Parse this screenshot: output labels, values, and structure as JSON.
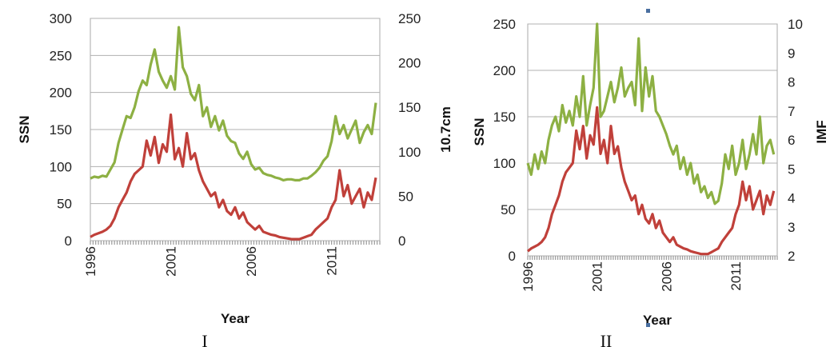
{
  "panels": [
    {
      "caption": "I",
      "chart_data": {
        "type": "line",
        "xlabel": "Year",
        "ylabel": "SSN",
        "y2label": "10.7cm",
        "xlim": [
          1996,
          2014
        ],
        "ylim": [
          0,
          300
        ],
        "y2lim": [
          0,
          250
        ],
        "xticks": [
          1996,
          2001,
          2006,
          2011
        ],
        "yticks": [
          0,
          50,
          100,
          150,
          200,
          250,
          300
        ],
        "y2ticks": [
          0,
          50,
          100,
          150,
          200,
          250
        ],
        "grid": true,
        "series": [
          {
            "axis": "right",
            "color": "#8db043",
            "x": [
              1996.0,
              1996.25,
              1996.5,
              1996.75,
              1997.0,
              1997.25,
              1997.5,
              1997.75,
              1998.0,
              1998.25,
              1998.5,
              1998.75,
              1999.0,
              1999.25,
              1999.5,
              1999.75,
              2000.0,
              2000.25,
              2000.5,
              2000.75,
              2001.0,
              2001.25,
              2001.5,
              2001.75,
              2002.0,
              2002.25,
              2002.5,
              2002.75,
              2003.0,
              2003.25,
              2003.5,
              2003.75,
              2004.0,
              2004.25,
              2004.5,
              2004.75,
              2005.0,
              2005.25,
              2005.5,
              2005.75,
              2006.0,
              2006.25,
              2006.5,
              2006.75,
              2007.0,
              2007.25,
              2007.5,
              2007.75,
              2008.0,
              2008.25,
              2008.5,
              2008.75,
              2009.0,
              2009.25,
              2009.5,
              2009.75,
              2010.0,
              2010.25,
              2010.5,
              2010.75,
              2011.0,
              2011.25,
              2011.5,
              2011.75,
              2012.0,
              2012.25,
              2012.5,
              2012.75,
              2013.0,
              2013.25,
              2013.5,
              2013.75
            ],
            "values": [
              70,
              72,
              71,
              73,
              72,
              80,
              88,
              110,
              125,
              140,
              138,
              150,
              168,
              180,
              175,
              198,
              215,
              190,
              180,
              172,
              185,
              170,
              240,
              195,
              185,
              165,
              158,
              175,
              140,
              150,
              128,
              140,
              124,
              135,
              118,
              112,
              110,
              98,
              92,
              100,
              86,
              80,
              82,
              76,
              74,
              73,
              71,
              70,
              68,
              69,
              69,
              68,
              68,
              70,
              70,
              73,
              77,
              82,
              90,
              95,
              112,
              140,
              120,
              130,
              115,
              125,
              135,
              110,
              122,
              130,
              120,
              155
            ]
          },
          {
            "axis": "left",
            "color": "#c0403a",
            "x": [
              1996.0,
              1996.25,
              1996.5,
              1996.75,
              1997.0,
              1997.25,
              1997.5,
              1997.75,
              1998.0,
              1998.25,
              1998.5,
              1998.75,
              1999.0,
              1999.25,
              1999.5,
              1999.75,
              2000.0,
              2000.25,
              2000.5,
              2000.75,
              2001.0,
              2001.25,
              2001.5,
              2001.75,
              2002.0,
              2002.25,
              2002.5,
              2002.75,
              2003.0,
              2003.25,
              2003.5,
              2003.75,
              2004.0,
              2004.25,
              2004.5,
              2004.75,
              2005.0,
              2005.25,
              2005.5,
              2005.75,
              2006.0,
              2006.25,
              2006.5,
              2006.75,
              2007.0,
              2007.25,
              2007.5,
              2007.75,
              2008.0,
              2008.25,
              2008.5,
              2008.75,
              2009.0,
              2009.25,
              2009.5,
              2009.75,
              2010.0,
              2010.25,
              2010.5,
              2010.75,
              2011.0,
              2011.25,
              2011.5,
              2011.75,
              2012.0,
              2012.25,
              2012.5,
              2012.75,
              2013.0,
              2013.25,
              2013.5,
              2013.75
            ],
            "values": [
              5,
              8,
              10,
              12,
              15,
              20,
              30,
              45,
              55,
              65,
              80,
              90,
              95,
              100,
              135,
              115,
              140,
              105,
              130,
              120,
              170,
              110,
              125,
              100,
              145,
              110,
              118,
              95,
              80,
              70,
              60,
              65,
              45,
              55,
              40,
              35,
              45,
              30,
              38,
              25,
              20,
              15,
              20,
              12,
              10,
              8,
              7,
              5,
              4,
              3,
              2,
              2,
              2,
              4,
              6,
              8,
              15,
              20,
              25,
              30,
              45,
              55,
              95,
              60,
              75,
              50,
              60,
              70,
              45,
              65,
              55,
              85
            ]
          }
        ]
      }
    },
    {
      "caption": "II",
      "chart_data": {
        "type": "line",
        "xlabel": "Year",
        "ylabel": "SSN",
        "y2label": "IMF",
        "xlim": [
          1996,
          2014
        ],
        "ylim": [
          0,
          250
        ],
        "y2lim": [
          2,
          10
        ],
        "xticks": [
          1996,
          2001,
          2006,
          2011
        ],
        "yticks": [
          0,
          50,
          100,
          150,
          200,
          250
        ],
        "y2ticks": [
          2,
          3,
          4,
          5,
          6,
          7,
          8,
          9,
          10
        ],
        "grid": true,
        "series": [
          {
            "axis": "right",
            "color": "#8db043",
            "x": [
              1996.0,
              1996.25,
              1996.5,
              1996.75,
              1997.0,
              1997.25,
              1997.5,
              1997.75,
              1998.0,
              1998.25,
              1998.5,
              1998.75,
              1999.0,
              1999.25,
              1999.5,
              1999.75,
              2000.0,
              2000.25,
              2000.5,
              2000.75,
              2001.0,
              2001.25,
              2001.5,
              2001.75,
              2002.0,
              2002.25,
              2002.5,
              2002.75,
              2003.0,
              2003.25,
              2003.5,
              2003.75,
              2004.0,
              2004.25,
              2004.5,
              2004.75,
              2005.0,
              2005.25,
              2005.5,
              2005.75,
              2006.0,
              2006.25,
              2006.5,
              2006.75,
              2007.0,
              2007.25,
              2007.5,
              2007.75,
              2008.0,
              2008.25,
              2008.5,
              2008.75,
              2009.0,
              2009.25,
              2009.5,
              2009.75,
              2010.0,
              2010.25,
              2010.5,
              2010.75,
              2011.0,
              2011.25,
              2011.5,
              2011.75,
              2012.0,
              2012.25,
              2012.5,
              2012.75,
              2013.0,
              2013.25,
              2013.5,
              2013.75
            ],
            "values": [
              5.2,
              4.8,
              5.5,
              5.0,
              5.6,
              5.2,
              6.0,
              6.5,
              6.8,
              6.3,
              7.2,
              6.6,
              7.0,
              6.5,
              7.5,
              6.8,
              8.2,
              6.5,
              7.2,
              7.8,
              10.0,
              6.8,
              7.0,
              7.5,
              8.0,
              7.3,
              7.8,
              8.5,
              7.5,
              7.8,
              8.0,
              7.2,
              9.5,
              7.0,
              8.5,
              7.5,
              8.2,
              7.0,
              6.8,
              6.5,
              6.2,
              5.8,
              5.5,
              5.8,
              5.0,
              5.4,
              4.8,
              5.2,
              4.5,
              4.8,
              4.2,
              4.4,
              4.0,
              4.2,
              3.8,
              3.9,
              4.5,
              5.5,
              5.0,
              5.8,
              4.8,
              5.2,
              6.0,
              5.0,
              5.5,
              6.2,
              5.5,
              6.8,
              5.2,
              5.8,
              6.0,
              5.5
            ]
          },
          {
            "axis": "left",
            "color": "#c0403a",
            "x": [
              1996.0,
              1996.25,
              1996.5,
              1996.75,
              1997.0,
              1997.25,
              1997.5,
              1997.75,
              1998.0,
              1998.25,
              1998.5,
              1998.75,
              1999.0,
              1999.25,
              1999.5,
              1999.75,
              2000.0,
              2000.25,
              2000.5,
              2000.75,
              2001.0,
              2001.25,
              2001.5,
              2001.75,
              2002.0,
              2002.25,
              2002.5,
              2002.75,
              2003.0,
              2003.25,
              2003.5,
              2003.75,
              2004.0,
              2004.25,
              2004.5,
              2004.75,
              2005.0,
              2005.25,
              2005.5,
              2005.75,
              2006.0,
              2006.25,
              2006.5,
              2006.75,
              2007.0,
              2007.25,
              2007.5,
              2007.75,
              2008.0,
              2008.25,
              2008.5,
              2008.75,
              2009.0,
              2009.25,
              2009.5,
              2009.75,
              2010.0,
              2010.25,
              2010.5,
              2010.75,
              2011.0,
              2011.25,
              2011.5,
              2011.75,
              2012.0,
              2012.25,
              2012.5,
              2012.75,
              2013.0,
              2013.25,
              2013.5,
              2013.75
            ],
            "values": [
              5,
              8,
              10,
              12,
              15,
              20,
              30,
              45,
              55,
              65,
              80,
              90,
              95,
              100,
              135,
              115,
              140,
              105,
              130,
              120,
              160,
              110,
              125,
              100,
              140,
              110,
              118,
              95,
              80,
              70,
              60,
              65,
              45,
              55,
              40,
              35,
              45,
              30,
              38,
              25,
              20,
              15,
              20,
              12,
              10,
              8,
              7,
              5,
              4,
              3,
              2,
              2,
              2,
              4,
              6,
              8,
              15,
              20,
              25,
              30,
              45,
              55,
              80,
              60,
              75,
              50,
              60,
              70,
              45,
              65,
              55,
              70
            ]
          }
        ]
      }
    }
  ]
}
